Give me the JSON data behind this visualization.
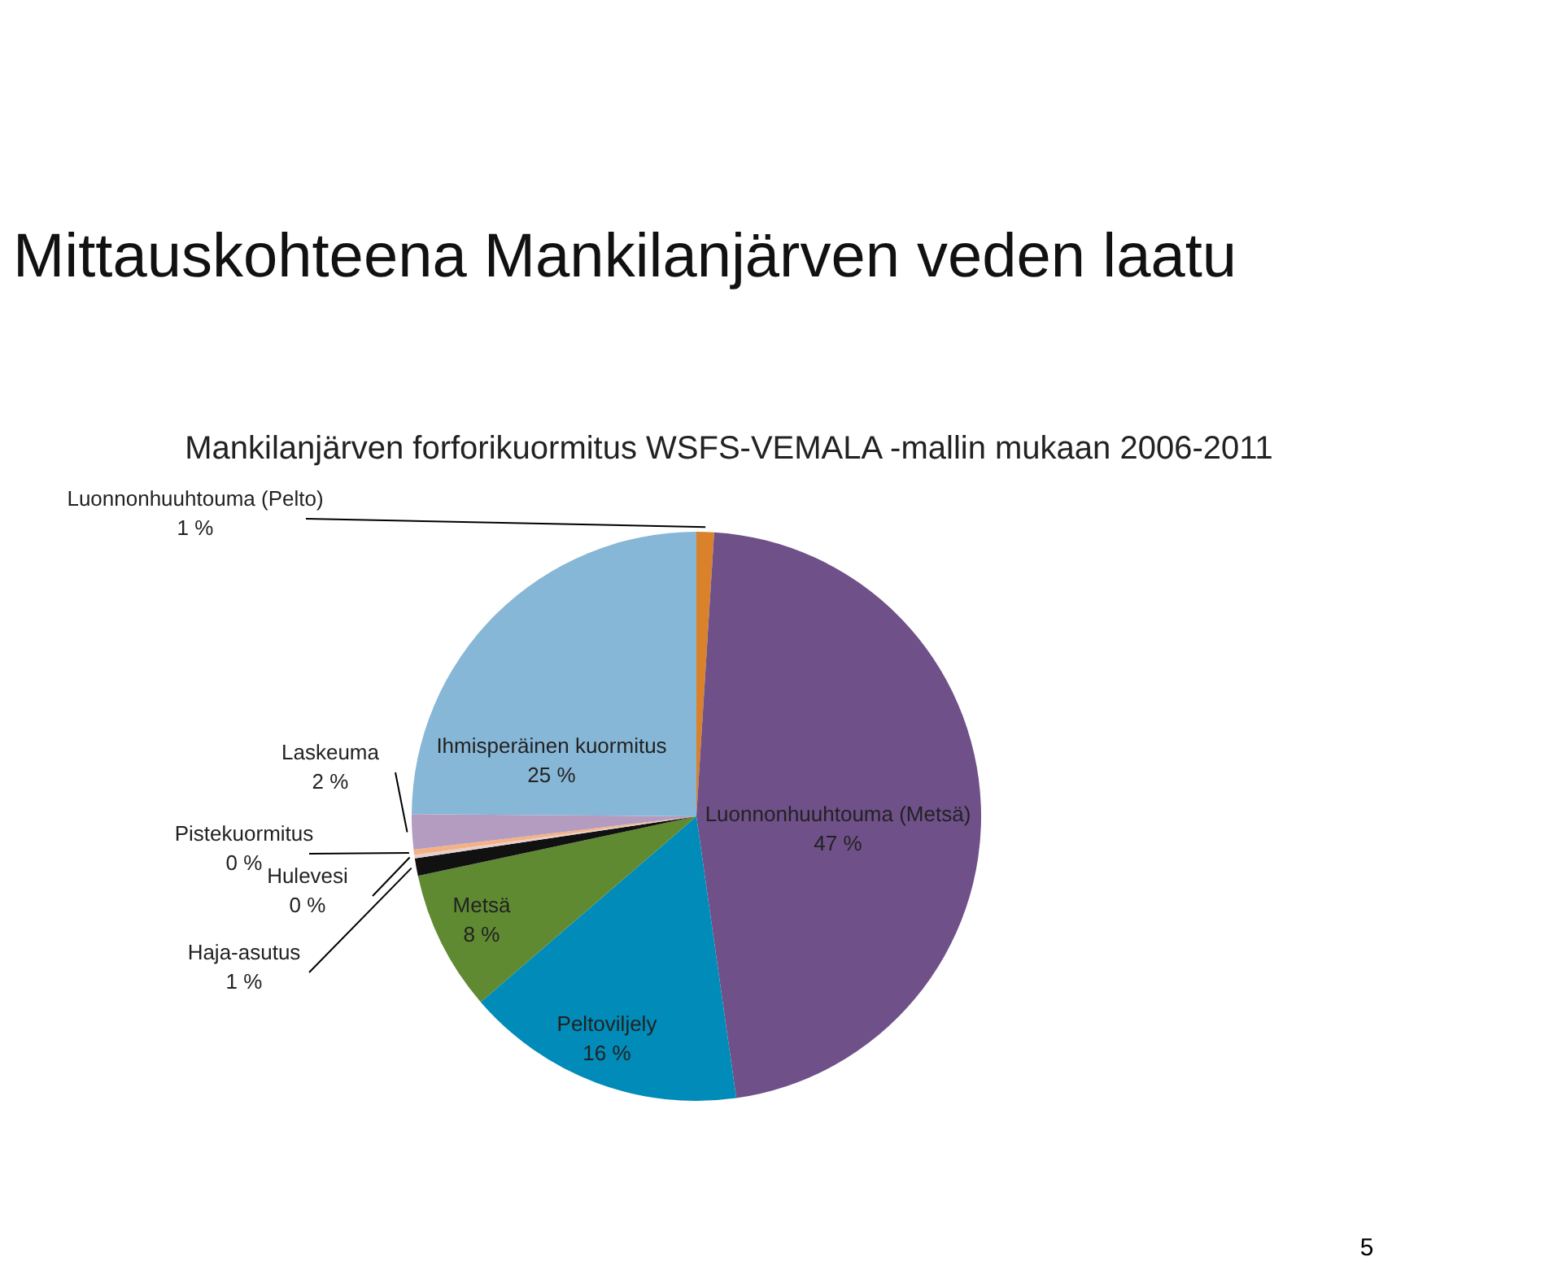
{
  "chart_data": {
    "type": "pie",
    "title": "Mittauskohteena Mankilanjärven veden laatu",
    "subtitle": "Mankilanjärven forforikuormitus WSFS-VEMALA -mallin mukaan 2006-2011",
    "categories": [
      "Luonnonhuuhtouma (Pelto)",
      "Luonnonhuuhtouma (Metsä)",
      "Peltoviljely",
      "Metsä",
      "Haja-asutus",
      "Hulevesi",
      "Pistekuormitus",
      "Laskeuma",
      "Ihmisperäinen kuormitus"
    ],
    "values": [
      1,
      47,
      16,
      8,
      1,
      0.2,
      0.3,
      2,
      25
    ],
    "value_labels": [
      "1 %",
      "47 %",
      "16 %",
      "8 %",
      "1 %",
      "0 %",
      "0 %",
      "2 %",
      "25 %"
    ],
    "colors": [
      "#d9822b",
      "#6f5089",
      "#008bb8",
      "#5f8a32",
      "#111111",
      "#e6d0cf",
      "#f4b183",
      "#b49cc0",
      "#87b7d6"
    ],
    "annotations": [
      "5"
    ]
  }
}
